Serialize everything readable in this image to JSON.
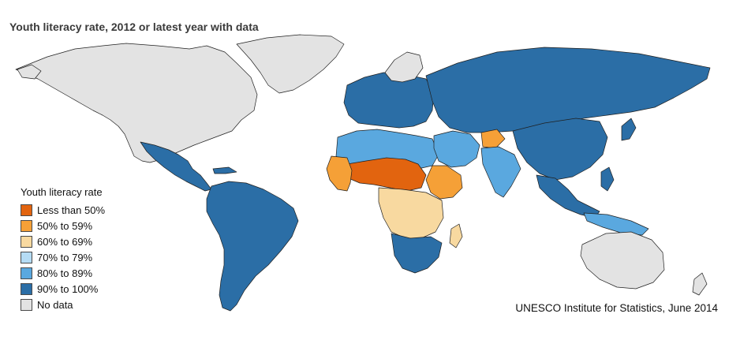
{
  "title": "Youth literacy rate, 2012 or latest year with data",
  "source": "UNESCO Institute for Statistics, June 2014",
  "legend": {
    "title": "Youth literacy rate",
    "items": [
      {
        "label": "Less than 50%",
        "color": "#e2640f"
      },
      {
        "label": "50% to 59%",
        "color": "#f5a037"
      },
      {
        "label": "60% to 69%",
        "color": "#f8d9a0"
      },
      {
        "label": "70% to 79%",
        "color": "#b5dcf5"
      },
      {
        "label": "80% to 89%",
        "color": "#5aa8df"
      },
      {
        "label": "90% to 100%",
        "color": "#2b6ea6"
      },
      {
        "label": "No data",
        "color": "#e3e3e3"
      }
    ]
  },
  "colors": {
    "ocean": "#ffffff",
    "border": "#1f1f1f",
    "lt50": "#e2640f",
    "c50": "#f5a037",
    "c60": "#f8d9a0",
    "c70": "#b5dcf5",
    "c80": "#5aa8df",
    "c90": "#2b6ea6",
    "nodata": "#e3e3e3"
  }
}
